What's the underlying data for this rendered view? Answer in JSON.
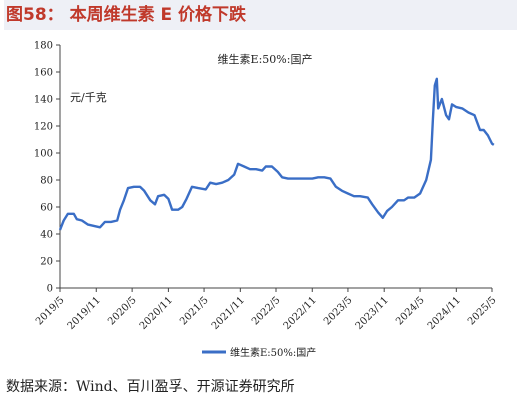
{
  "figure": {
    "title": "图58：  本周维生素 E 价格下跌",
    "source": "数据来源：Wind、百川盈孚、开源证券研究所"
  },
  "chart_data": {
    "type": "line",
    "title": "维生素E:50%:国产",
    "unit": "元/千克",
    "ylim": [
      0,
      180
    ],
    "yticks": [
      0,
      20,
      40,
      60,
      80,
      100,
      120,
      140,
      160,
      180
    ],
    "xlim": [
      "2019-05",
      "2025-05"
    ],
    "xticks": [
      "2019/5",
      "2019/11",
      "2020/5",
      "2020/11",
      "2021/5",
      "2021/11",
      "2022/5",
      "2022/11",
      "2023/5",
      "2023/11",
      "2024/5",
      "2024/11",
      "2025/5"
    ],
    "grid": false,
    "legend_position": "bottom-center",
    "series": [
      {
        "name": "维生素E:50%:国产",
        "color": "#3a6ec6",
        "points": [
          [
            "2019-05-01",
            43
          ],
          [
            "2019-05-20",
            50
          ],
          [
            "2019-06-10",
            55
          ],
          [
            "2019-07-10",
            55
          ],
          [
            "2019-07-25",
            51
          ],
          [
            "2019-08-20",
            50
          ],
          [
            "2019-09-20",
            47
          ],
          [
            "2019-10-20",
            46
          ],
          [
            "2019-11-20",
            45
          ],
          [
            "2019-12-15",
            49
          ],
          [
            "2020-01-15",
            49
          ],
          [
            "2020-02-15",
            50
          ],
          [
            "2020-03-01",
            58
          ],
          [
            "2020-03-20",
            65
          ],
          [
            "2020-04-10",
            74
          ],
          [
            "2020-05-10",
            75
          ],
          [
            "2020-06-10",
            75
          ],
          [
            "2020-07-01",
            72
          ],
          [
            "2020-08-01",
            65
          ],
          [
            "2020-08-25",
            62
          ],
          [
            "2020-09-10",
            68
          ],
          [
            "2020-10-10",
            69
          ],
          [
            "2020-11-01",
            66
          ],
          [
            "2020-11-20",
            58
          ],
          [
            "2020-12-20",
            58
          ],
          [
            "2021-01-10",
            60
          ],
          [
            "2021-02-01",
            66
          ],
          [
            "2021-03-01",
            75
          ],
          [
            "2021-04-01",
            74
          ],
          [
            "2021-05-10",
            73
          ],
          [
            "2021-06-01",
            78
          ],
          [
            "2021-07-01",
            77
          ],
          [
            "2021-08-01",
            78
          ],
          [
            "2021-09-01",
            80
          ],
          [
            "2021-10-01",
            84
          ],
          [
            "2021-10-20",
            92
          ],
          [
            "2021-11-20",
            90
          ],
          [
            "2021-12-20",
            88
          ],
          [
            "2022-01-20",
            88
          ],
          [
            "2022-02-20",
            87
          ],
          [
            "2022-03-10",
            90
          ],
          [
            "2022-04-10",
            90
          ],
          [
            "2022-05-10",
            86
          ],
          [
            "2022-06-01",
            82
          ],
          [
            "2022-07-01",
            81
          ],
          [
            "2022-09-01",
            81
          ],
          [
            "2022-11-01",
            81
          ],
          [
            "2022-12-01",
            82
          ],
          [
            "2023-01-01",
            82
          ],
          [
            "2023-02-01",
            81
          ],
          [
            "2023-03-01",
            75
          ],
          [
            "2023-04-01",
            72
          ],
          [
            "2023-05-01",
            70
          ],
          [
            "2023-06-01",
            68
          ],
          [
            "2023-07-01",
            68
          ],
          [
            "2023-08-10",
            67
          ],
          [
            "2023-09-01",
            62
          ],
          [
            "2023-10-01",
            56
          ],
          [
            "2023-10-25",
            52
          ],
          [
            "2023-11-15",
            57
          ],
          [
            "2023-12-10",
            60
          ],
          [
            "2024-01-10",
            65
          ],
          [
            "2024-02-10",
            65
          ],
          [
            "2024-03-01",
            67
          ],
          [
            "2024-04-01",
            67
          ],
          [
            "2024-05-01",
            70
          ],
          [
            "2024-06-01",
            80
          ],
          [
            "2024-06-25",
            95
          ],
          [
            "2024-07-05",
            125
          ],
          [
            "2024-07-15",
            150
          ],
          [
            "2024-07-25",
            155
          ],
          [
            "2024-08-01",
            133
          ],
          [
            "2024-08-20",
            140
          ],
          [
            "2024-09-10",
            128
          ],
          [
            "2024-09-25",
            125
          ],
          [
            "2024-10-10",
            136
          ],
          [
            "2024-11-01",
            134
          ],
          [
            "2024-12-01",
            133
          ],
          [
            "2025-01-01",
            130
          ],
          [
            "2025-02-01",
            128
          ],
          [
            "2025-03-01",
            117
          ],
          [
            "2025-03-20",
            117
          ],
          [
            "2025-04-10",
            113
          ],
          [
            "2025-05-01",
            107
          ],
          [
            "2025-05-10",
            106
          ]
        ]
      }
    ]
  }
}
